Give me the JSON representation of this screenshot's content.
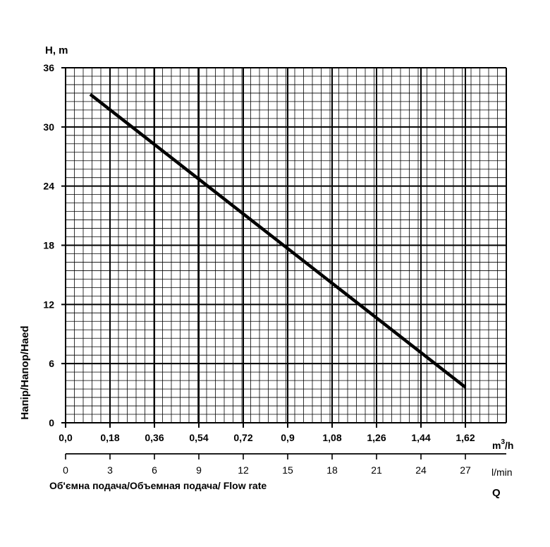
{
  "chart_data": {
    "type": "line",
    "y_axis": {
      "unit_label": "H, m",
      "title": "Напір/Напор/Haed",
      "range": [
        0,
        36
      ],
      "ticks": [
        "0",
        "6",
        "12",
        "18",
        "24",
        "30",
        "36"
      ]
    },
    "x_axis_primary": {
      "unit_label": "m",
      "unit_sup": "3",
      "unit_suffix": "/h",
      "range": [
        0,
        1.62
      ],
      "ticks": [
        "0,0",
        "0,18",
        "0,36",
        "0,54",
        "0,72",
        "0,9",
        "1,08",
        "1,26",
        "1,44",
        "1,62"
      ]
    },
    "x_axis_secondary": {
      "unit_label": "l/min",
      "title": "Об'ємна подача/Объемная подача/ Flow rate",
      "symbol": "Q",
      "range": [
        0,
        27
      ],
      "ticks": [
        "0",
        "3",
        "6",
        "9",
        "12",
        "15",
        "18",
        "21",
        "24",
        "27"
      ]
    },
    "grid": true,
    "series": [
      {
        "x": [
          0.1,
          1.62
        ],
        "y": [
          33.3,
          3.6
        ]
      }
    ]
  }
}
